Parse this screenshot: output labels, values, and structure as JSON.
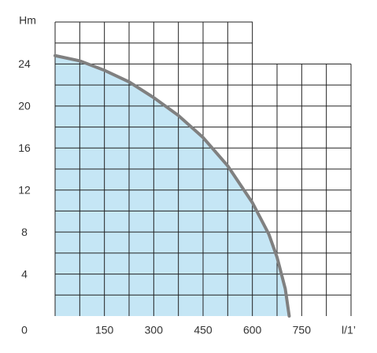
{
  "chart_data": {
    "type": "area",
    "y_label": "Hm",
    "x_label": "l/1’",
    "xlim": [
      0,
      900
    ],
    "ylim": [
      0,
      28
    ],
    "xticks": [
      150,
      300,
      450,
      600,
      750
    ],
    "yticks": [
      0,
      4,
      8,
      12,
      16,
      20,
      24
    ],
    "grid": true,
    "series": [
      {
        "color": "#808080",
        "fill": "#c5e6f5",
        "x": [
          0,
          75,
          150,
          225,
          300,
          375,
          450,
          525,
          600,
          650,
          675,
          700,
          712
        ],
        "values": [
          24.8,
          24.3,
          23.4,
          22.3,
          20.8,
          19.1,
          17,
          14.3,
          10.8,
          7.8,
          5.6,
          2.6,
          0
        ]
      }
    ]
  }
}
